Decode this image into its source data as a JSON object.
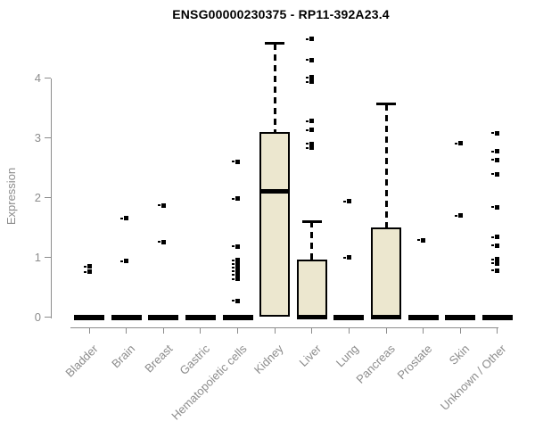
{
  "chart_data": {
    "type": "box",
    "title": "ENSG00000230375 - RP11-392A23.4",
    "ylabel": "Expression",
    "xlabel": "",
    "yticks": [
      0,
      1,
      2,
      3,
      4
    ],
    "ylim": [
      0,
      4.75
    ],
    "grid": false,
    "legend": false,
    "categories": [
      "Bladder",
      "Brain",
      "Breast",
      "Gastric",
      "Hematopoietic cells",
      "Kidney",
      "Liver",
      "Lung",
      "Pancreas",
      "Prostate",
      "Skin",
      "Unknown / Other"
    ],
    "series": [
      {
        "category": "Bladder",
        "q1": 0,
        "median": 0,
        "q3": 0,
        "whisker_low": 0,
        "whisker_high": 0,
        "outliers": [
          0.85,
          0.76
        ]
      },
      {
        "category": "Brain",
        "q1": 0,
        "median": 0,
        "q3": 0,
        "whisker_low": 0,
        "whisker_high": 0,
        "outliers": [
          1.65,
          0.94
        ]
      },
      {
        "category": "Breast",
        "q1": 0,
        "median": 0,
        "q3": 0,
        "whisker_low": 0,
        "whisker_high": 0,
        "outliers": [
          1.87,
          1.26
        ]
      },
      {
        "category": "Gastric",
        "q1": 0,
        "median": 0,
        "q3": 0,
        "whisker_low": 0,
        "whisker_high": 0,
        "outliers": []
      },
      {
        "category": "Hematopoietic cells",
        "q1": 0,
        "median": 0,
        "q3": 0,
        "whisker_low": 0,
        "whisker_high": 0,
        "outliers": [
          2.6,
          1.98,
          1.18,
          0.95,
          0.89,
          0.83,
          0.77,
          0.71,
          0.64,
          0.27
        ]
      },
      {
        "category": "Kidney",
        "q1": 0,
        "median": 2.1,
        "q3": 3.1,
        "whisker_low": 0,
        "whisker_high": 4.58,
        "outliers": []
      },
      {
        "category": "Liver",
        "q1": 0,
        "median": 0,
        "q3": 0.96,
        "whisker_low": 0,
        "whisker_high": 1.6,
        "outliers": [
          4.65,
          4.3,
          4.01,
          3.94,
          3.28,
          3.13,
          2.9,
          2.83
        ]
      },
      {
        "category": "Lung",
        "q1": 0,
        "median": 0,
        "q3": 0,
        "whisker_low": 0,
        "whisker_high": 0,
        "outliers": [
          1.94,
          1.0
        ]
      },
      {
        "category": "Pancreas",
        "q1": 0,
        "median": 0,
        "q3": 1.5,
        "whisker_low": 0,
        "whisker_high": 3.56,
        "outliers": []
      },
      {
        "category": "Prostate",
        "q1": 0,
        "median": 0,
        "q3": 0,
        "whisker_low": 0,
        "whisker_high": 0,
        "outliers": [
          1.29
        ]
      },
      {
        "category": "Skin",
        "q1": 0,
        "median": 0,
        "q3": 0,
        "whisker_low": 0,
        "whisker_high": 0,
        "outliers": [
          2.91,
          1.7
        ]
      },
      {
        "category": "Unknown / Other",
        "q1": 0,
        "median": 0,
        "q3": 0,
        "whisker_low": 0,
        "whisker_high": 0,
        "outliers": [
          3.08,
          2.77,
          2.63,
          2.39,
          1.84,
          1.34,
          1.2,
          0.97,
          0.9,
          0.78
        ]
      }
    ],
    "colors": {
      "box_fill": "#ece7cf",
      "box_stroke": "#000000",
      "axis": "#8c8c8c",
      "label_text": "#8c8c8c",
      "title_text": "#000000"
    }
  }
}
